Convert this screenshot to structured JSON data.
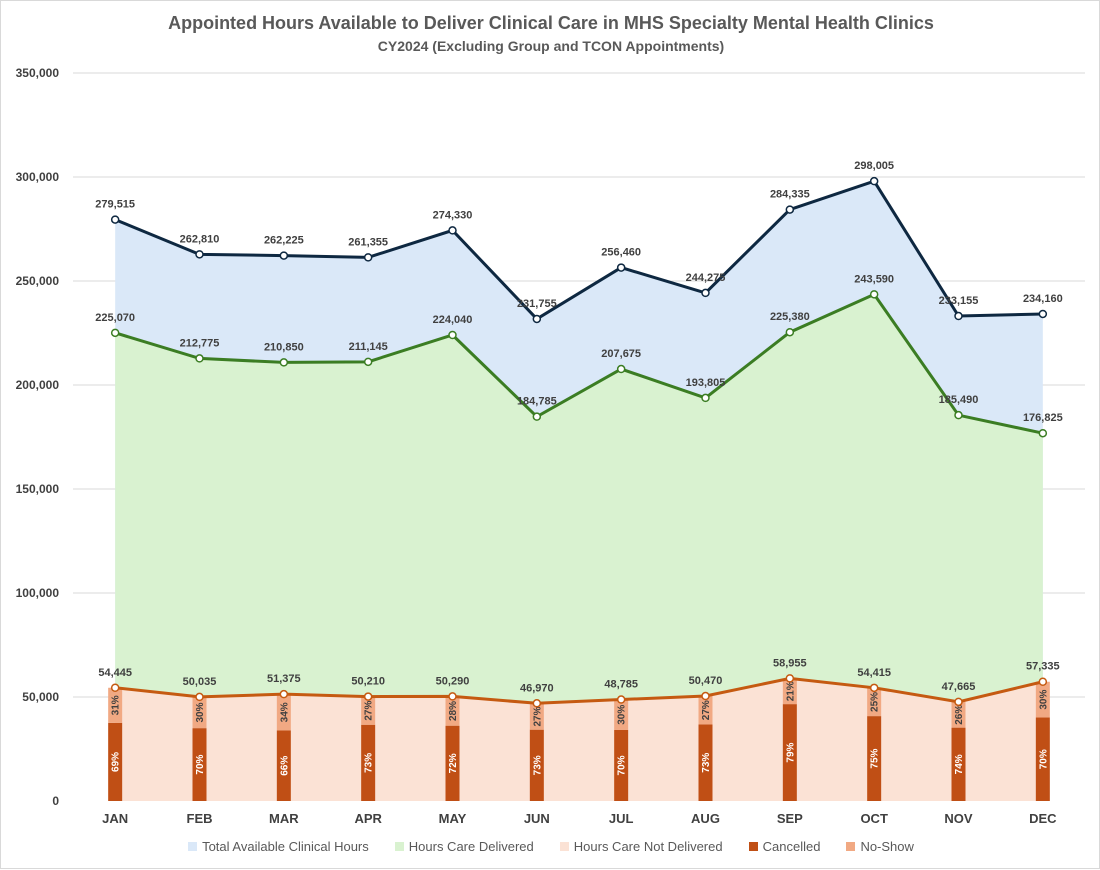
{
  "chart_data": {
    "type": "area",
    "title": "Appointed Hours Available to Deliver Clinical Care in MHS Specialty Mental Health Clinics",
    "subtitle": "CY2024 (Excluding Group and TCON Appointments)",
    "categories": [
      "JAN",
      "FEB",
      "MAR",
      "APR",
      "MAY",
      "JUN",
      "JUL",
      "AUG",
      "SEP",
      "OCT",
      "NOV",
      "DEC"
    ],
    "ylim": [
      0,
      350000
    ],
    "yticks": [
      0,
      50000,
      100000,
      150000,
      200000,
      250000,
      300000,
      350000
    ],
    "ytick_labels": [
      "0",
      "50,000",
      "100,000",
      "150,000",
      "200,000",
      "250,000",
      "300,000",
      "350,000"
    ],
    "grid": true,
    "legend_position": "bottom",
    "series": [
      {
        "name": "Total Available Clinical Hours",
        "values": [
          279515,
          262810,
          262225,
          261355,
          274330,
          231755,
          256460,
          244275,
          284335,
          298005,
          233155,
          234160
        ],
        "labels": [
          "279,515",
          "262,810",
          "262,225",
          "261,355",
          "274,330",
          "231,755",
          "256,460",
          "244,275",
          "284,335",
          "298,005",
          "233,155",
          "234,160"
        ],
        "fill": "#dae8f8",
        "line": "#0e2841"
      },
      {
        "name": "Hours Care Delivered",
        "values": [
          225070,
          212775,
          210850,
          211145,
          224040,
          184785,
          207675,
          193805,
          225380,
          243590,
          185490,
          176825
        ],
        "labels": [
          "225,070",
          "212,775",
          "210,850",
          "211,145",
          "224,040",
          "184,785",
          "207,675",
          "193,805",
          "225,380",
          "243,590",
          "185,490",
          "176,825"
        ],
        "fill": "#d9f2d0",
        "line": "#3b7d23"
      },
      {
        "name": "Hours Care Not Delivered",
        "values": [
          54445,
          50035,
          51375,
          50210,
          50290,
          46970,
          48785,
          50470,
          58955,
          54415,
          47665,
          57335
        ],
        "labels": [
          "54,445",
          "50,035",
          "51,375",
          "50,210",
          "50,290",
          "46,970",
          "48,785",
          "50,470",
          "58,955",
          "54,415",
          "47,665",
          "57,335"
        ],
        "fill": "#fbe2d5",
        "line": "#c55a11"
      }
    ],
    "bars": {
      "cancelled": {
        "name": "Cancelled",
        "pct": [
          69,
          70,
          66,
          73,
          72,
          73,
          70,
          73,
          79,
          75,
          74,
          70
        ],
        "labels": [
          "69%",
          "70%",
          "66%",
          "73%",
          "72%",
          "73%",
          "70%",
          "73%",
          "79%",
          "75%",
          "74%",
          "70%"
        ],
        "color": "#c04f15"
      },
      "noshow": {
        "name": "No-Show",
        "pct": [
          31,
          30,
          34,
          27,
          28,
          27,
          30,
          27,
          21,
          25,
          26,
          30
        ],
        "labels": [
          "31%",
          "30%",
          "34%",
          "27%",
          "28%",
          "27%",
          "30%",
          "27%",
          "21%",
          "25%",
          "26%",
          "30%"
        ],
        "color": "#f1a983"
      }
    }
  }
}
